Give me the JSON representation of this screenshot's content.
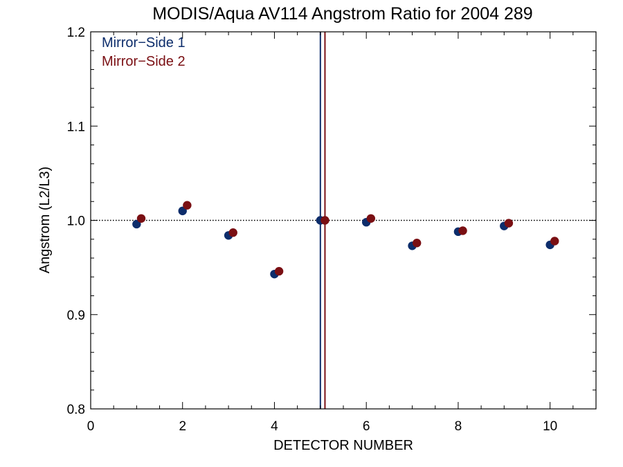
{
  "chart_data": {
    "type": "scatter",
    "title": "MODIS/Aqua AV114 Angstrom Ratio for 2004 289",
    "xlabel": "DETECTOR NUMBER",
    "ylabel": "Angstrom (L2/L3)",
    "xlim": [
      0,
      11
    ],
    "ylim": [
      0.8,
      1.2
    ],
    "xticks": [
      0,
      2,
      4,
      6,
      8,
      10
    ],
    "xtick_labels": [
      "0",
      "2",
      "4",
      "6",
      "8",
      "10"
    ],
    "yticks": [
      0.8,
      0.9,
      1.0,
      1.1,
      1.2
    ],
    "ytick_labels": [
      "0.8",
      "0.9",
      "1.0",
      "1.1",
      "1.2"
    ],
    "grid": false,
    "legend_position": "top-left",
    "reference_line_y": 1.0,
    "series": [
      {
        "name": "Mirror−Side 1",
        "color": "#0d2d6b",
        "vertical_line_x": 5.0,
        "x": [
          1,
          2,
          3,
          4,
          5,
          6,
          7,
          8,
          9,
          10
        ],
        "y": [
          0.996,
          1.01,
          0.984,
          0.943,
          1.0,
          0.998,
          0.973,
          0.988,
          0.994,
          0.974
        ]
      },
      {
        "name": "Mirror−Side 2",
        "color": "#7a0f13",
        "vertical_line_x": 5.1,
        "x": [
          1.1,
          2.1,
          3.1,
          4.1,
          5.1,
          6.1,
          7.1,
          8.1,
          9.1,
          10.1
        ],
        "y": [
          1.002,
          1.016,
          0.987,
          0.946,
          1.0,
          1.002,
          0.976,
          0.989,
          0.997,
          0.978
        ]
      }
    ]
  }
}
